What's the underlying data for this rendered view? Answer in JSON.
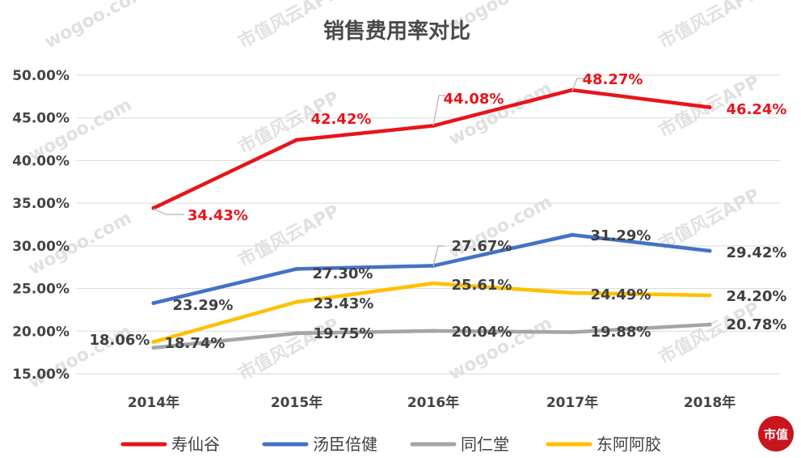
{
  "chart_data": {
    "type": "line",
    "title": "销售费用率对比",
    "categories": [
      "2014年",
      "2015年",
      "2016年",
      "2017年",
      "2018年"
    ],
    "yticks": [
      "15.00%",
      "20.00%",
      "25.00%",
      "30.00%",
      "35.00%",
      "40.00%",
      "45.00%",
      "50.00%"
    ],
    "ylim": [
      15,
      50
    ],
    "grid": true,
    "legend_position": "bottom",
    "series": [
      {
        "name": "寿仙谷",
        "color": "#e8141b",
        "values": [
          34.43,
          42.42,
          44.08,
          48.27,
          46.24
        ],
        "labels": [
          "34.43%",
          "42.42%",
          "44.08%",
          "48.27%",
          "46.24%"
        ]
      },
      {
        "name": "汤臣倍健",
        "color": "#4472c4",
        "values": [
          23.29,
          27.3,
          27.67,
          31.29,
          29.42
        ],
        "labels": [
          "23.29%",
          "27.30%",
          "27.67%",
          "31.29%",
          "29.42%"
        ]
      },
      {
        "name": "同仁堂",
        "color": "#a5a5a5",
        "values": [
          18.06,
          19.75,
          20.04,
          19.88,
          20.78
        ],
        "labels": [
          "18.06%",
          "19.75%",
          "20.04%",
          "19.88%",
          "20.78%"
        ]
      },
      {
        "name": "东阿阿胶",
        "color": "#ffc000",
        "values": [
          18.74,
          23.43,
          25.61,
          24.49,
          24.2
        ],
        "labels": [
          "18.74%",
          "23.43%",
          "25.61%",
          "24.49%",
          "24.20%"
        ]
      }
    ]
  },
  "watermark": {
    "site": "wogoo.com",
    "app": "市值风云APP",
    "logo_text": "市值"
  }
}
